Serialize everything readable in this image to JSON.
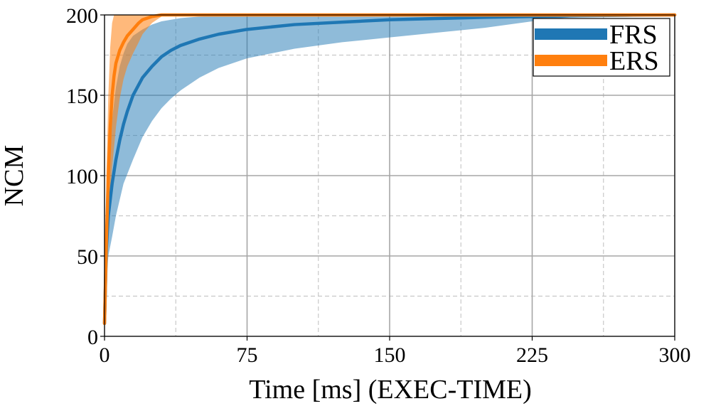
{
  "chart_data": {
    "type": "line",
    "title": "",
    "xlabel": "Time [ms] (EXEC-TIME)",
    "ylabel": "NCM",
    "xlim": [
      0,
      300
    ],
    "ylim": [
      0,
      200
    ],
    "x_ticks": [
      0,
      75,
      150,
      225,
      300
    ],
    "x_tick_labels": [
      "0",
      "75",
      "150",
      "225",
      "300"
    ],
    "x_minor_ticks": [
      37.5,
      112.5,
      187.5,
      262.5
    ],
    "y_ticks": [
      0,
      50,
      100,
      150,
      200
    ],
    "y_tick_labels": [
      "0",
      "50",
      "100",
      "150",
      "200"
    ],
    "y_minor_ticks": [
      25,
      75,
      125,
      175
    ],
    "grid": true,
    "legend_position": "top-right",
    "series": [
      {
        "name": "FRS",
        "color": "#1f77b4",
        "mean": [
          [
            0,
            8
          ],
          [
            1,
            55
          ],
          [
            2,
            75
          ],
          [
            4,
            95
          ],
          [
            6,
            110
          ],
          [
            8,
            122
          ],
          [
            10,
            132
          ],
          [
            12,
            140
          ],
          [
            15,
            150
          ],
          [
            20,
            161
          ],
          [
            25,
            168
          ],
          [
            30,
            174
          ],
          [
            35,
            178
          ],
          [
            40,
            181
          ],
          [
            50,
            185
          ],
          [
            60,
            188
          ],
          [
            75,
            191
          ],
          [
            100,
            194
          ],
          [
            125,
            195.5
          ],
          [
            150,
            197
          ],
          [
            175,
            197.8
          ],
          [
            200,
            198.5
          ],
          [
            225,
            199
          ],
          [
            250,
            199.5
          ],
          [
            275,
            199.8
          ],
          [
            300,
            200
          ]
        ],
        "band_upper": [
          [
            0,
            8
          ],
          [
            1,
            75
          ],
          [
            2,
            105
          ],
          [
            4,
            135
          ],
          [
            6,
            155
          ],
          [
            8,
            168
          ],
          [
            10,
            176
          ],
          [
            12,
            182
          ],
          [
            15,
            187
          ],
          [
            20,
            191
          ],
          [
            25,
            194
          ],
          [
            30,
            196
          ],
          [
            40,
            198
          ],
          [
            50,
            199
          ],
          [
            75,
            200
          ],
          [
            300,
            200
          ]
        ],
        "band_lower": [
          [
            0,
            8
          ],
          [
            1,
            35
          ],
          [
            2,
            50
          ],
          [
            4,
            62
          ],
          [
            6,
            75
          ],
          [
            8,
            85
          ],
          [
            10,
            95
          ],
          [
            15,
            110
          ],
          [
            20,
            124
          ],
          [
            25,
            134
          ],
          [
            30,
            142
          ],
          [
            35,
            148
          ],
          [
            40,
            153
          ],
          [
            50,
            161
          ],
          [
            60,
            167
          ],
          [
            75,
            173
          ],
          [
            100,
            179
          ],
          [
            125,
            183
          ],
          [
            150,
            186
          ],
          [
            175,
            189
          ],
          [
            200,
            192
          ],
          [
            225,
            196
          ],
          [
            240,
            198
          ],
          [
            250,
            199
          ],
          [
            275,
            200
          ],
          [
            300,
            200
          ]
        ]
      },
      {
        "name": "ERS",
        "color": "#ff7f0e",
        "mean": [
          [
            0,
            8
          ],
          [
            1,
            60
          ],
          [
            2,
            100
          ],
          [
            3,
            130
          ],
          [
            4,
            150
          ],
          [
            5,
            162
          ],
          [
            6,
            170
          ],
          [
            8,
            178
          ],
          [
            10,
            183
          ],
          [
            12,
            187
          ],
          [
            15,
            191
          ],
          [
            18,
            195
          ],
          [
            20,
            197
          ],
          [
            25,
            199
          ],
          [
            30,
            200
          ],
          [
            300,
            200
          ]
        ],
        "band_upper": [
          [
            0,
            8
          ],
          [
            1,
            100
          ],
          [
            2,
            150
          ],
          [
            3,
            180
          ],
          [
            4,
            195
          ],
          [
            5,
            200
          ],
          [
            300,
            200
          ]
        ],
        "band_lower": [
          [
            0,
            8
          ],
          [
            1,
            45
          ],
          [
            2,
            70
          ],
          [
            4,
            105
          ],
          [
            6,
            130
          ],
          [
            8,
            148
          ],
          [
            10,
            160
          ],
          [
            12,
            168
          ],
          [
            15,
            176
          ],
          [
            18,
            183
          ],
          [
            20,
            188
          ],
          [
            25,
            195
          ],
          [
            30,
            199
          ],
          [
            35,
            200
          ],
          [
            300,
            200
          ]
        ]
      }
    ]
  }
}
